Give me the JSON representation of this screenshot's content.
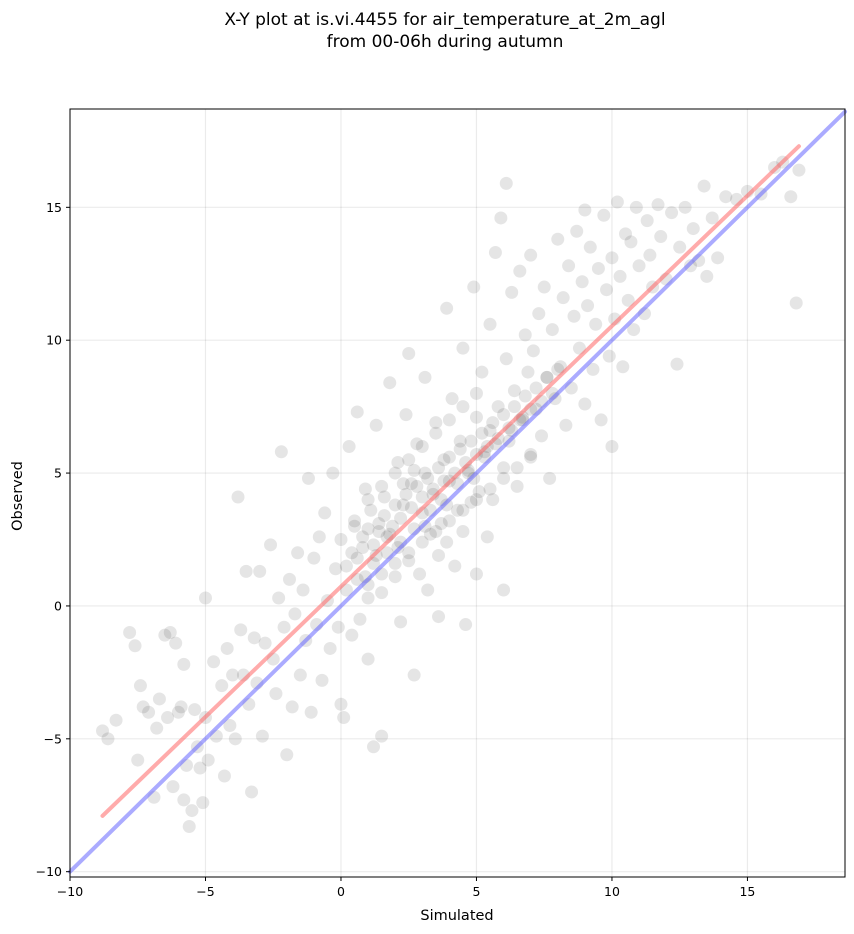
{
  "chart_data": {
    "type": "scatter",
    "title": [
      "X-Y plot at is.vi.4455 for air_temperature_at_2m_agl",
      "from 00-06h during autumn"
    ],
    "xlabel": "Simulated",
    "ylabel": "Observed",
    "xlim": [
      -10,
      18.6
    ],
    "ylim": [
      -10.2,
      18.7
    ],
    "xticks": [
      -10,
      -5,
      0,
      5,
      10,
      15
    ],
    "yticks": [
      -10,
      -5,
      0,
      5,
      10,
      15
    ],
    "xtick_labels": [
      "−10",
      "−5",
      "0",
      "5",
      "10",
      "15"
    ],
    "ytick_labels": [
      "−10",
      "−5",
      "0",
      "5",
      "10",
      "15"
    ],
    "grid": true,
    "point_color": "#000000",
    "point_alpha": 0.1,
    "series": [
      {
        "type": "scatter",
        "points": [
          [
            -8.8,
            -4.7
          ],
          [
            -8.6,
            -5.0
          ],
          [
            -8.3,
            -4.3
          ],
          [
            -7.8,
            -1.0
          ],
          [
            -7.6,
            -1.5
          ],
          [
            -7.5,
            -5.8
          ],
          [
            -7.4,
            -3.0
          ],
          [
            -7.3,
            -3.8
          ],
          [
            -7.1,
            -4.0
          ],
          [
            -6.9,
            -7.2
          ],
          [
            -6.8,
            -4.6
          ],
          [
            -6.7,
            -3.5
          ],
          [
            -6.5,
            -1.1
          ],
          [
            -6.4,
            -4.2
          ],
          [
            -6.3,
            -1.0
          ],
          [
            -6.2,
            -6.8
          ],
          [
            -6.1,
            -1.4
          ],
          [
            -6.0,
            -4.0
          ],
          [
            -5.9,
            -3.8
          ],
          [
            -5.8,
            -2.2
          ],
          [
            -5.8,
            -7.3
          ],
          [
            -5.7,
            -6.0
          ],
          [
            -5.6,
            -8.3
          ],
          [
            -5.5,
            -7.7
          ],
          [
            -5.4,
            -3.9
          ],
          [
            -5.3,
            -5.3
          ],
          [
            -5.2,
            -6.1
          ],
          [
            -5.1,
            -7.4
          ],
          [
            -5.0,
            0.3
          ],
          [
            -5.0,
            -4.2
          ],
          [
            -4.9,
            -5.8
          ],
          [
            -4.7,
            -2.1
          ],
          [
            -4.6,
            -4.9
          ],
          [
            -4.4,
            -3.0
          ],
          [
            -4.3,
            -6.4
          ],
          [
            -4.2,
            -1.6
          ],
          [
            -4.1,
            -4.5
          ],
          [
            -4.0,
            -2.6
          ],
          [
            -3.9,
            -5.0
          ],
          [
            -3.8,
            4.1
          ],
          [
            -3.7,
            -0.9
          ],
          [
            -3.6,
            -2.6
          ],
          [
            -3.5,
            1.3
          ],
          [
            -3.4,
            -3.7
          ],
          [
            -3.3,
            -7.0
          ],
          [
            -3.2,
            -1.2
          ],
          [
            -3.1,
            -2.9
          ],
          [
            -3.0,
            1.3
          ],
          [
            -2.9,
            -4.9
          ],
          [
            -2.8,
            -1.4
          ],
          [
            -2.6,
            2.3
          ],
          [
            -2.5,
            -2.0
          ],
          [
            -2.4,
            -3.3
          ],
          [
            -2.3,
            0.3
          ],
          [
            -2.2,
            5.8
          ],
          [
            -2.1,
            -0.8
          ],
          [
            -2.0,
            -5.6
          ],
          [
            -1.9,
            1.0
          ],
          [
            -1.8,
            -3.8
          ],
          [
            -1.7,
            -0.3
          ],
          [
            -1.6,
            2.0
          ],
          [
            -1.5,
            -2.6
          ],
          [
            -1.4,
            0.6
          ],
          [
            -1.3,
            -1.3
          ],
          [
            -1.2,
            4.8
          ],
          [
            -1.1,
            -4.0
          ],
          [
            -1.0,
            1.8
          ],
          [
            -0.9,
            -0.7
          ],
          [
            -0.8,
            2.6
          ],
          [
            -0.7,
            -2.8
          ],
          [
            -0.6,
            3.5
          ],
          [
            -0.5,
            0.2
          ],
          [
            -0.4,
            -1.6
          ],
          [
            -0.3,
            5.0
          ],
          [
            -0.2,
            1.4
          ],
          [
            -0.1,
            -0.8
          ],
          [
            0.0,
            -3.7
          ],
          [
            0.0,
            2.5
          ],
          [
            0.1,
            -4.2
          ],
          [
            0.2,
            0.6
          ],
          [
            0.3,
            6.0
          ],
          [
            0.4,
            -1.1
          ],
          [
            0.5,
            3.2
          ],
          [
            0.6,
            1.0
          ],
          [
            0.6,
            7.3
          ],
          [
            0.7,
            -0.5
          ],
          [
            0.8,
            2.2
          ],
          [
            0.9,
            4.4
          ],
          [
            1.0,
            -2.0
          ],
          [
            1.0,
            0.3
          ],
          [
            1.1,
            3.6
          ],
          [
            1.2,
            1.6
          ],
          [
            1.2,
            -5.3
          ],
          [
            1.3,
            6.8
          ],
          [
            1.4,
            2.8
          ],
          [
            1.5,
            -4.9
          ],
          [
            1.5,
            0.5
          ],
          [
            1.6,
            4.1
          ],
          [
            1.7,
            2.0
          ],
          [
            1.8,
            8.4
          ],
          [
            1.9,
            3.0
          ],
          [
            2.0,
            1.1
          ],
          [
            2.1,
            5.4
          ],
          [
            2.2,
            2.4
          ],
          [
            2.2,
            -0.6
          ],
          [
            2.3,
            3.8
          ],
          [
            2.4,
            7.2
          ],
          [
            2.5,
            1.7
          ],
          [
            2.5,
            9.5
          ],
          [
            2.6,
            4.6
          ],
          [
            2.7,
            -2.6
          ],
          [
            2.7,
            2.9
          ],
          [
            2.8,
            6.1
          ],
          [
            2.9,
            1.2
          ],
          [
            3.0,
            3.5
          ],
          [
            3.1,
            8.6
          ],
          [
            3.1,
            5.0
          ],
          [
            3.2,
            0.6
          ],
          [
            3.3,
            2.7
          ],
          [
            3.4,
            4.2
          ],
          [
            3.5,
            6.9
          ],
          [
            3.6,
            1.9
          ],
          [
            3.6,
            -0.4
          ],
          [
            3.7,
            3.1
          ],
          [
            3.8,
            5.5
          ],
          [
            3.9,
            11.2
          ],
          [
            3.9,
            2.4
          ],
          [
            4.0,
            4.7
          ],
          [
            4.1,
            7.8
          ],
          [
            4.2,
            1.5
          ],
          [
            4.3,
            3.6
          ],
          [
            4.4,
            6.2
          ],
          [
            4.5,
            9.7
          ],
          [
            4.5,
            2.8
          ],
          [
            4.6,
            -0.7
          ],
          [
            4.7,
            5.1
          ],
          [
            4.8,
            3.9
          ],
          [
            4.9,
            12.0
          ],
          [
            5.0,
            7.1
          ],
          [
            5.0,
            1.2
          ],
          [
            5.1,
            4.3
          ],
          [
            5.2,
            8.8
          ],
          [
            5.3,
            5.8
          ],
          [
            5.4,
            2.6
          ],
          [
            5.5,
            10.6
          ],
          [
            5.5,
            6.6
          ],
          [
            5.6,
            4.0
          ],
          [
            5.7,
            13.3
          ],
          [
            5.8,
            7.5
          ],
          [
            5.9,
            14.6
          ],
          [
            6.0,
            5.2
          ],
          [
            6.0,
            0.6
          ],
          [
            6.1,
            15.9
          ],
          [
            6.1,
            9.3
          ],
          [
            6.2,
            6.2
          ],
          [
            6.3,
            11.8
          ],
          [
            6.4,
            8.1
          ],
          [
            6.5,
            4.5
          ],
          [
            6.6,
            12.6
          ],
          [
            6.7,
            7.0
          ],
          [
            6.8,
            10.2
          ],
          [
            6.9,
            8.8
          ],
          [
            7.0,
            5.7
          ],
          [
            7.0,
            13.2
          ],
          [
            7.1,
            9.6
          ],
          [
            7.2,
            7.4
          ],
          [
            7.3,
            11.0
          ],
          [
            7.4,
            6.4
          ],
          [
            7.5,
            12.0
          ],
          [
            7.6,
            8.6
          ],
          [
            7.7,
            4.8
          ],
          [
            7.8,
            10.4
          ],
          [
            7.9,
            7.8
          ],
          [
            8.0,
            13.8
          ],
          [
            8.1,
            9.0
          ],
          [
            8.2,
            11.6
          ],
          [
            8.3,
            6.8
          ],
          [
            8.4,
            12.8
          ],
          [
            8.5,
            8.2
          ],
          [
            8.6,
            10.9
          ],
          [
            8.7,
            14.1
          ],
          [
            8.8,
            9.7
          ],
          [
            8.9,
            12.2
          ],
          [
            9.0,
            7.6
          ],
          [
            9.0,
            14.9
          ],
          [
            9.1,
            11.3
          ],
          [
            9.2,
            13.5
          ],
          [
            9.3,
            8.9
          ],
          [
            9.4,
            10.6
          ],
          [
            9.5,
            12.7
          ],
          [
            9.6,
            7.0
          ],
          [
            9.7,
            14.7
          ],
          [
            9.8,
            11.9
          ],
          [
            9.9,
            9.4
          ],
          [
            10.0,
            13.1
          ],
          [
            10.0,
            6.0
          ],
          [
            10.1,
            10.8
          ],
          [
            10.2,
            15.2
          ],
          [
            10.3,
            12.4
          ],
          [
            10.4,
            9.0
          ],
          [
            10.5,
            14.0
          ],
          [
            10.6,
            11.5
          ],
          [
            10.7,
            13.7
          ],
          [
            10.8,
            10.4
          ],
          [
            10.9,
            15.0
          ],
          [
            11.0,
            12.8
          ],
          [
            11.2,
            11.0
          ],
          [
            11.3,
            14.5
          ],
          [
            11.4,
            13.2
          ],
          [
            11.5,
            12.0
          ],
          [
            11.7,
            15.1
          ],
          [
            11.8,
            13.9
          ],
          [
            12.0,
            12.3
          ],
          [
            12.2,
            14.8
          ],
          [
            12.4,
            9.1
          ],
          [
            12.5,
            13.5
          ],
          [
            12.7,
            15.0
          ],
          [
            12.9,
            12.8
          ],
          [
            13.0,
            14.2
          ],
          [
            13.2,
            13.0
          ],
          [
            13.4,
            15.8
          ],
          [
            13.5,
            12.4
          ],
          [
            13.7,
            14.6
          ],
          [
            13.9,
            13.1
          ],
          [
            14.2,
            15.4
          ],
          [
            14.6,
            15.3
          ],
          [
            15.0,
            15.6
          ],
          [
            15.5,
            15.5
          ],
          [
            16.0,
            16.5
          ],
          [
            16.3,
            16.7
          ],
          [
            16.6,
            15.4
          ],
          [
            16.8,
            11.4
          ],
          [
            16.9,
            16.4
          ],
          [
            0.2,
            1.5
          ],
          [
            0.4,
            2.0
          ],
          [
            0.6,
            1.8
          ],
          [
            0.8,
            2.6
          ],
          [
            1.0,
            2.9
          ],
          [
            1.2,
            2.3
          ],
          [
            1.4,
            3.1
          ],
          [
            1.6,
            3.4
          ],
          [
            1.8,
            2.7
          ],
          [
            2.0,
            3.8
          ],
          [
            2.2,
            3.3
          ],
          [
            2.4,
            4.2
          ],
          [
            2.6,
            3.7
          ],
          [
            2.8,
            4.5
          ],
          [
            3.0,
            4.1
          ],
          [
            3.2,
            4.8
          ],
          [
            3.4,
            4.4
          ],
          [
            3.6,
            5.2
          ],
          [
            3.8,
            4.7
          ],
          [
            4.0,
            5.6
          ],
          [
            4.2,
            5.0
          ],
          [
            4.4,
            5.9
          ],
          [
            4.6,
            5.4
          ],
          [
            4.8,
            6.2
          ],
          [
            5.0,
            5.7
          ],
          [
            5.2,
            6.5
          ],
          [
            5.4,
            6.0
          ],
          [
            5.6,
            6.9
          ],
          [
            5.8,
            6.3
          ],
          [
            6.0,
            7.2
          ],
          [
            6.2,
            6.7
          ],
          [
            6.4,
            7.5
          ],
          [
            6.6,
            7.0
          ],
          [
            6.8,
            7.9
          ],
          [
            7.0,
            7.4
          ],
          [
            7.2,
            8.2
          ],
          [
            7.4,
            7.7
          ],
          [
            7.6,
            8.6
          ],
          [
            7.8,
            8.0
          ],
          [
            8.0,
            8.9
          ],
          [
            0.5,
            3.0
          ],
          [
            1.0,
            4.0
          ],
          [
            1.5,
            4.5
          ],
          [
            2.0,
            5.0
          ],
          [
            2.5,
            5.5
          ],
          [
            3.0,
            6.0
          ],
          [
            3.5,
            6.5
          ],
          [
            4.0,
            7.0
          ],
          [
            4.5,
            7.5
          ],
          [
            5.0,
            8.0
          ],
          [
            1.0,
            0.8
          ],
          [
            1.5,
            1.2
          ],
          [
            2.0,
            1.6
          ],
          [
            2.5,
            2.0
          ],
          [
            3.0,
            2.4
          ],
          [
            3.5,
            2.8
          ],
          [
            4.0,
            3.2
          ],
          [
            4.5,
            3.6
          ],
          [
            5.0,
            4.0
          ],
          [
            5.5,
            4.4
          ],
          [
            6.0,
            4.8
          ],
          [
            6.5,
            5.2
          ],
          [
            7.0,
            5.6
          ],
          [
            2.3,
            4.6
          ],
          [
            2.7,
            5.1
          ],
          [
            3.3,
            3.6
          ],
          [
            3.7,
            4.0
          ],
          [
            4.3,
            4.6
          ],
          [
            4.7,
            5.0
          ],
          [
            5.3,
            5.6
          ],
          [
            5.7,
            6.1
          ],
          [
            6.3,
            6.6
          ],
          [
            6.7,
            7.1
          ],
          [
            1.7,
            2.6
          ],
          [
            2.1,
            2.2
          ],
          [
            1.3,
            1.9
          ],
          [
            0.9,
            1.1
          ],
          [
            3.1,
            3.0
          ],
          [
            3.9,
            3.8
          ],
          [
            4.9,
            4.8
          ]
        ]
      },
      {
        "type": "line",
        "color": "#ff6666",
        "alpha": 0.55,
        "points": [
          [
            -8.8,
            -7.9
          ],
          [
            16.9,
            17.3
          ]
        ]
      },
      {
        "type": "line",
        "color": "#6666ff",
        "alpha": 0.55,
        "points": [
          [
            -10,
            -10
          ],
          [
            18.6,
            18.6
          ]
        ]
      }
    ]
  }
}
